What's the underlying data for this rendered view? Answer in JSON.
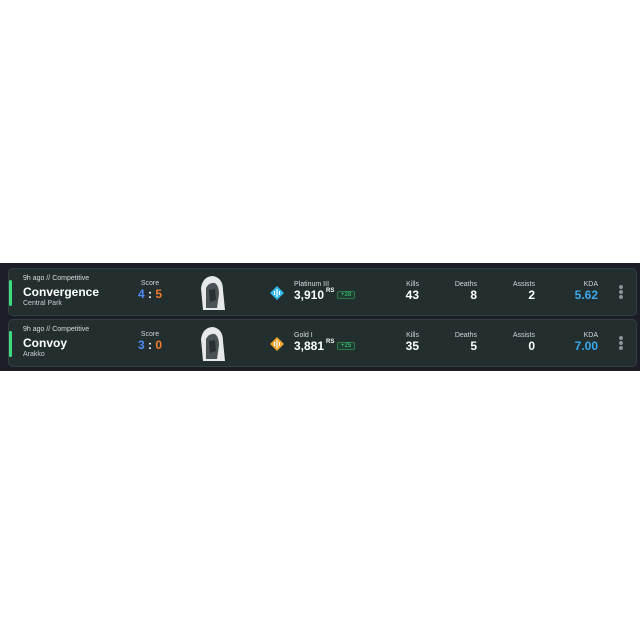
{
  "matches": [
    {
      "meta": "9h ago // Competitive",
      "map": "Convergence",
      "location": "Central Park",
      "score_label": "Score",
      "score_left": "4",
      "score_sep": ":",
      "score_right": "5",
      "rank_name": "Platinum III",
      "rank_icon": "platinum-rank-icon",
      "rank_color": "#2fb8e8",
      "rs": "3,910",
      "rs_unit": "RS",
      "rs_delta": "+28",
      "kills_label": "Kills",
      "kills": "43",
      "deaths_label": "Deaths",
      "deaths": "8",
      "assists_label": "Assists",
      "assists": "2",
      "kda_label": "KDA",
      "kda": "5.62"
    },
    {
      "meta": "9h ago // Competitive",
      "map": "Convoy",
      "location": "Arakko",
      "score_label": "Score",
      "score_left": "3",
      "score_sep": ":",
      "score_right": "0",
      "rank_name": "Gold I",
      "rank_icon": "gold-rank-icon",
      "rank_color": "#f0a42a",
      "rs": "3,881",
      "rs_unit": "RS",
      "rs_delta": "+25",
      "kills_label": "Kills",
      "kills": "35",
      "deaths_label": "Deaths",
      "deaths": "5",
      "assists_label": "Assists",
      "assists": "0",
      "kda_label": "KDA",
      "kda": "7.00"
    }
  ],
  "colors": {
    "win": "#3ddc84",
    "team_score": "#4d8cf5",
    "enemy_score": "#f07a2f",
    "kda": "#3aa9ee"
  }
}
